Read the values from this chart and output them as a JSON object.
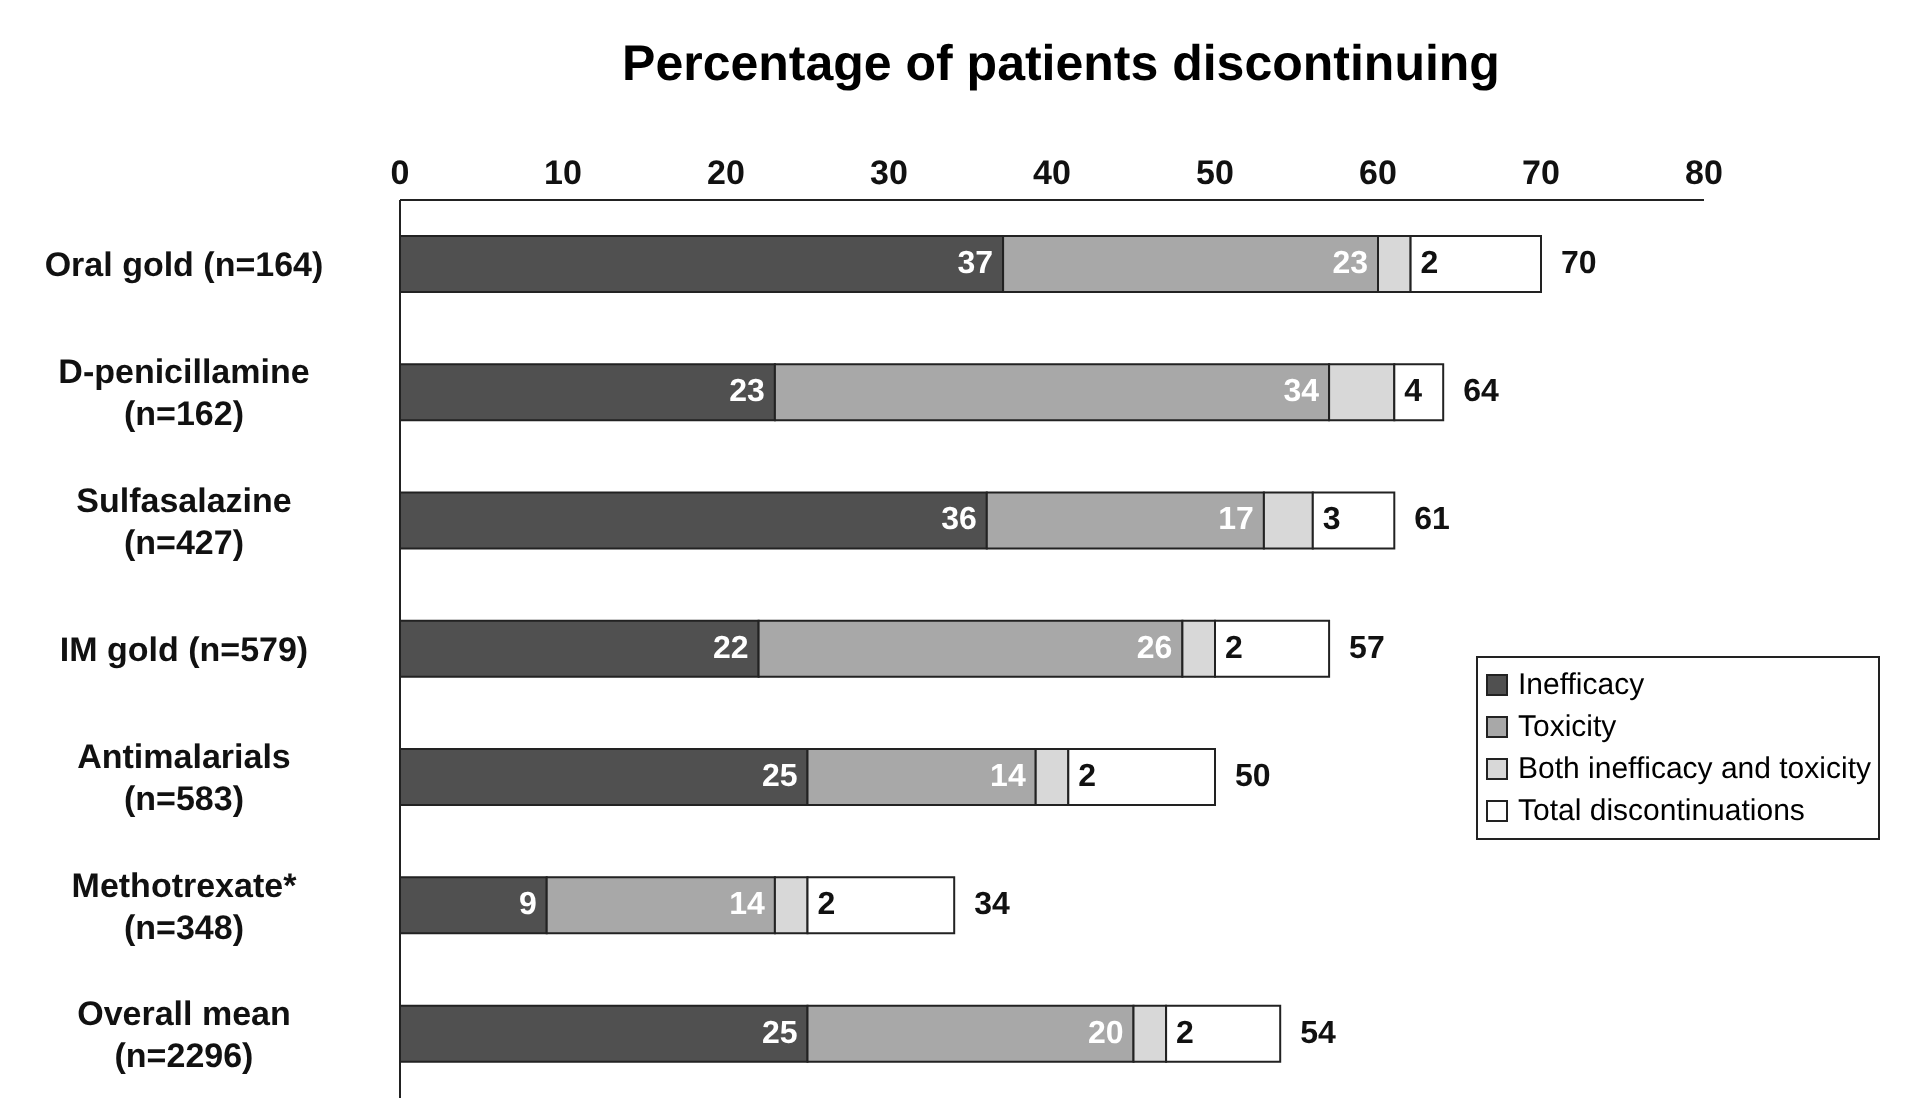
{
  "chart_data": {
    "type": "bar",
    "orientation": "horizontal",
    "stacked": true,
    "xlabel": "Percentage of patients discontinuing",
    "categories": [
      "Oral gold (n=164)",
      "D-penicillamine\n(n=162)",
      "Sulfasalazine\n(n=427)",
      "IM gold (n=579)",
      "Antimalarials\n(n=583)",
      "Methotrexate*\n(n=348)",
      "Overall mean\n(n=2296)"
    ],
    "series": [
      {
        "name": "Inefficacy",
        "color": "#505050",
        "values": [
          37,
          23,
          36,
          22,
          25,
          9,
          25
        ],
        "value_labels": [
          "37",
          "23",
          "36",
          "22",
          "25",
          "9",
          "25"
        ]
      },
      {
        "name": "Toxicity",
        "color": "#a8a8a8",
        "values": [
          23,
          34,
          17,
          26,
          14,
          14,
          20
        ],
        "value_labels": [
          "23",
          "34",
          "17",
          "26",
          "14",
          "14",
          "20"
        ]
      },
      {
        "name": "Both inefficacy and toxicity",
        "color": "#d8d8d8",
        "values": [
          2,
          4,
          3,
          2,
          2,
          2,
          2
        ],
        "value_labels": [
          "2",
          "4",
          "3",
          "2",
          "2",
          "2",
          "2"
        ]
      },
      {
        "name": "Total discontinuations",
        "color": "#ffffff",
        "values": [
          8,
          3,
          5,
          7,
          9,
          9,
          7
        ]
      }
    ],
    "totals": [
      "70",
      "64",
      "61",
      "57",
      "50",
      "34",
      "54"
    ],
    "xlim": [
      0,
      80
    ],
    "xticks": [
      0,
      10,
      20,
      30,
      40,
      50,
      60,
      70,
      80
    ],
    "grid": false,
    "legend": "right"
  }
}
